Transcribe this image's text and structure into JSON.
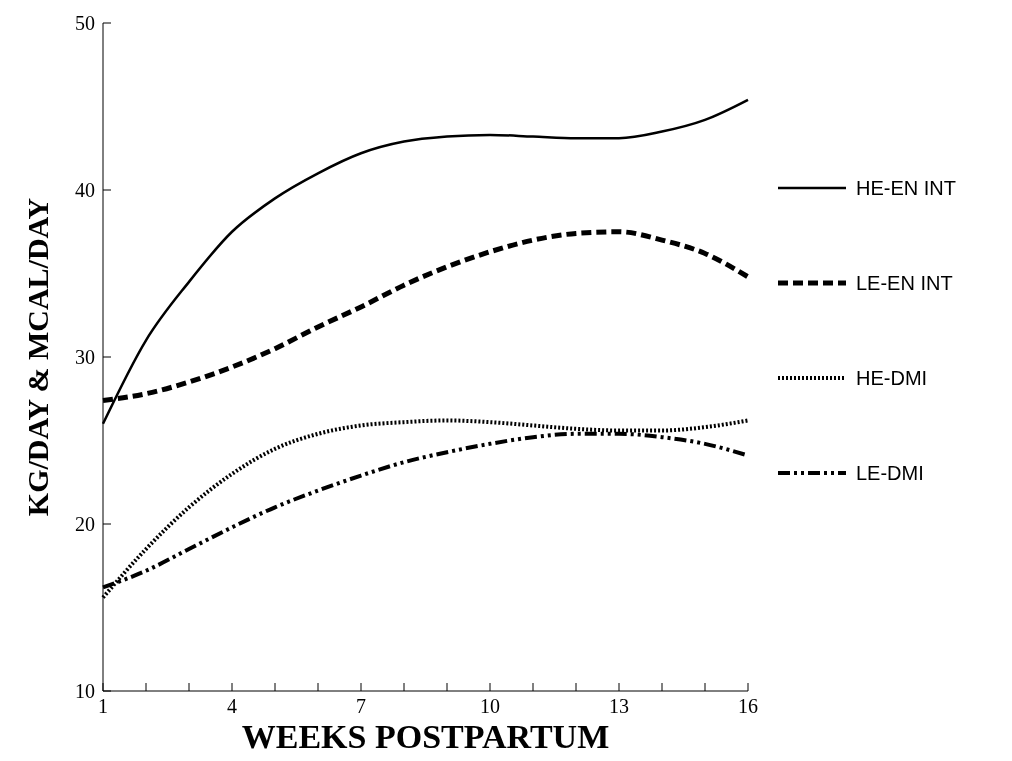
{
  "chart_data": {
    "type": "line",
    "xlabel": "WEEKS POSTPARTUM",
    "ylabel": "KG/DAY & MCAL/DAY",
    "x": [
      1,
      2,
      3,
      4,
      5,
      6,
      7,
      8,
      9,
      10,
      11,
      12,
      13,
      14,
      15,
      16
    ],
    "xlim": [
      1,
      16
    ],
    "xticks": [
      1,
      {
        "value": 2,
        "label": null
      },
      {
        "value": 3,
        "label": null
      },
      4,
      {
        "value": 5,
        "label": null
      },
      {
        "value": 6,
        "label": null
      },
      7,
      {
        "value": 8,
        "label": null
      },
      {
        "value": 9,
        "label": null
      },
      10,
      {
        "value": 11,
        "label": null
      },
      {
        "value": 12,
        "label": null
      },
      13,
      {
        "value": 14,
        "label": null
      },
      {
        "value": 15,
        "label": null
      },
      16
    ],
    "ylim": [
      10,
      50
    ],
    "yticks": [
      10,
      20,
      30,
      40,
      50
    ],
    "legend": "right",
    "series": [
      {
        "name": "HE-EN INT",
        "color": "#000000",
        "line_style": "solid",
        "values": [
          26,
          31,
          34.5,
          37.5,
          39.5,
          41,
          42.2,
          42.9,
          43.2,
          43.3,
          43.2,
          43.1,
          43.1,
          43.5,
          44.2,
          45.4
        ]
      },
      {
        "name": "LE-EN INT",
        "color": "#000000",
        "line_style": "dashed",
        "values": [
          27.4,
          27.8,
          28.5,
          29.4,
          30.5,
          31.8,
          33,
          34.3,
          35.4,
          36.3,
          37,
          37.4,
          37.5,
          37,
          36.2,
          34.8
        ]
      },
      {
        "name": "HE-DMI",
        "color": "#000000",
        "line_style": "dotted",
        "values": [
          15.6,
          18.5,
          21,
          23,
          24.5,
          25.4,
          25.9,
          26.1,
          26.2,
          26.1,
          25.9,
          25.7,
          25.6,
          25.6,
          25.8,
          26.2
        ]
      },
      {
        "name": "LE-DMI",
        "color": "#000000",
        "line_style": "dashdot",
        "values": [
          16.2,
          17.2,
          18.5,
          19.8,
          21,
          22,
          22.9,
          23.7,
          24.3,
          24.8,
          25.2,
          25.4,
          25.4,
          25.2,
          24.8,
          24.1
        ]
      }
    ]
  }
}
